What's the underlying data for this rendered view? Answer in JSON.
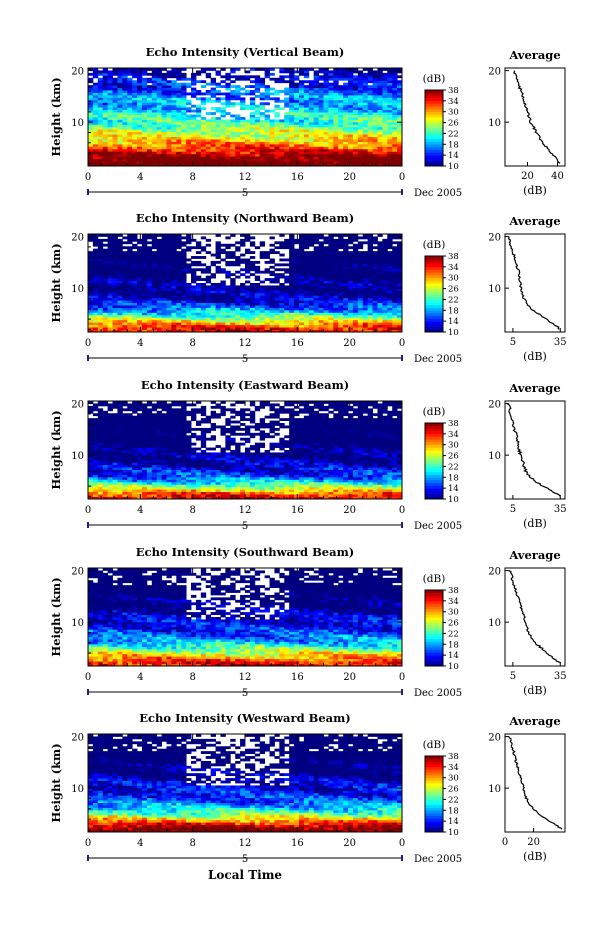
{
  "figure": {
    "x_axis_title": "Local Time",
    "date_label": "Dec 2005",
    "day_label": "5",
    "colorbar_unit": "(dB)",
    "avg_title": "Average",
    "avg_xlabel": "(dB)"
  },
  "chart_data": [
    {
      "type": "heatmap",
      "title": "Echo Intensity (Vertical Beam)",
      "ylabel": "Height (km)",
      "xlabel": "Local Time",
      "x_ticks": [
        "0",
        "4",
        "8",
        "12",
        "16",
        "20",
        "0"
      ],
      "y_ticks": [
        "10",
        "20"
      ],
      "xlim": [
        0,
        24
      ],
      "ylim": [
        1.5,
        20.5
      ],
      "colorbar": {
        "label": "(dB)",
        "ticks": [
          "10",
          "14",
          "18",
          "22",
          "26",
          "30",
          "34",
          "38"
        ],
        "range": [
          10,
          38
        ]
      },
      "profile": {
        "title": "Average",
        "xlabel": "(dB)",
        "x_ticks": [
          "20",
          "40"
        ],
        "xlim": [
          5,
          45
        ],
        "height": [
          2,
          3,
          4,
          5,
          6,
          7,
          8,
          9,
          10,
          11,
          12,
          13,
          14,
          15,
          16,
          17,
          18,
          19,
          20
        ],
        "values": [
          41,
          39,
          36,
          33,
          30,
          28,
          26,
          24,
          22,
          21,
          20,
          19,
          18,
          17,
          16,
          14,
          13,
          12,
          11
        ]
      }
    },
    {
      "type": "heatmap",
      "title": "Echo Intensity (Northward Beam)",
      "ylabel": "Height (km)",
      "xlabel": "Local Time",
      "x_ticks": [
        "0",
        "4",
        "8",
        "12",
        "16",
        "20",
        "0"
      ],
      "y_ticks": [
        "10",
        "20"
      ],
      "xlim": [
        0,
        24
      ],
      "ylim": [
        1.5,
        20.5
      ],
      "colorbar": {
        "label": "(dB)",
        "ticks": [
          "10",
          "14",
          "18",
          "22",
          "26",
          "30",
          "34",
          "38"
        ],
        "range": [
          10,
          38
        ]
      },
      "profile": {
        "title": "Average",
        "xlabel": "(dB)",
        "x_ticks": [
          "5",
          "35"
        ],
        "xlim": [
          0,
          38
        ],
        "height": [
          2,
          3,
          4,
          5,
          6,
          7,
          8,
          9,
          10,
          11,
          12,
          13,
          14,
          15,
          16,
          17,
          18,
          19,
          20
        ],
        "values": [
          35,
          31,
          26,
          21,
          17,
          14,
          12,
          11,
          10,
          10,
          9,
          9,
          8,
          7,
          6,
          5,
          4,
          3,
          2
        ]
      }
    },
    {
      "type": "heatmap",
      "title": "Echo Intensity (Eastward Beam)",
      "ylabel": "Height (km)",
      "xlabel": "Local Time",
      "x_ticks": [
        "0",
        "4",
        "8",
        "12",
        "16",
        "20",
        "0"
      ],
      "y_ticks": [
        "10",
        "20"
      ],
      "xlim": [
        0,
        24
      ],
      "ylim": [
        1.5,
        20.5
      ],
      "colorbar": {
        "label": "(dB)",
        "ticks": [
          "10",
          "14",
          "18",
          "22",
          "26",
          "30",
          "34",
          "38"
        ],
        "range": [
          10,
          38
        ]
      },
      "profile": {
        "title": "Average",
        "xlabel": "(dB)",
        "x_ticks": [
          "5",
          "35"
        ],
        "xlim": [
          0,
          38
        ],
        "height": [
          2,
          3,
          4,
          5,
          6,
          7,
          8,
          9,
          10,
          11,
          12,
          13,
          14,
          15,
          16,
          17,
          18,
          19,
          20
        ],
        "values": [
          35,
          30,
          24,
          19,
          15,
          13,
          12,
          11,
          10,
          9,
          8,
          8,
          7,
          6,
          5,
          4,
          3,
          3,
          2
        ]
      }
    },
    {
      "type": "heatmap",
      "title": "Echo Intensity (Southward Beam)",
      "ylabel": "Height (km)",
      "xlabel": "Local Time",
      "x_ticks": [
        "0",
        "4",
        "8",
        "12",
        "16",
        "20",
        "0"
      ],
      "y_ticks": [
        "10",
        "20"
      ],
      "xlim": [
        0,
        24
      ],
      "ylim": [
        1.5,
        20.5
      ],
      "colorbar": {
        "label": "(dB)",
        "ticks": [
          "10",
          "14",
          "18",
          "22",
          "26",
          "30",
          "34",
          "38"
        ],
        "range": [
          10,
          38
        ]
      },
      "profile": {
        "title": "Average",
        "xlabel": "(dB)",
        "x_ticks": [
          "5",
          "35"
        ],
        "xlim": [
          0,
          38
        ],
        "height": [
          2,
          3,
          4,
          5,
          6,
          7,
          8,
          9,
          10,
          11,
          12,
          13,
          14,
          15,
          16,
          17,
          18,
          19,
          20
        ],
        "values": [
          35,
          31,
          27,
          23,
          19,
          17,
          15,
          14,
          13,
          12,
          11,
          10,
          9,
          8,
          7,
          6,
          5,
          4,
          3
        ]
      }
    },
    {
      "type": "heatmap",
      "title": "Echo Intensity (Westward Beam)",
      "ylabel": "Height (km)",
      "xlabel": "Local Time",
      "x_ticks": [
        "0",
        "4",
        "8",
        "12",
        "16",
        "20",
        "0"
      ],
      "y_ticks": [
        "10",
        "20"
      ],
      "xlim": [
        0,
        24
      ],
      "ylim": [
        1.5,
        20.5
      ],
      "colorbar": {
        "label": "(dB)",
        "ticks": [
          "10",
          "14",
          "18",
          "22",
          "26",
          "30",
          "34",
          "38"
        ],
        "range": [
          10,
          38
        ]
      },
      "profile": {
        "title": "Average",
        "xlabel": "(dB)",
        "x_ticks": [
          "0",
          "20"
        ],
        "xlim": [
          0,
          42
        ],
        "height": [
          2,
          3,
          4,
          5,
          6,
          7,
          8,
          9,
          10,
          11,
          12,
          13,
          14,
          15,
          16,
          17,
          18,
          19,
          20
        ],
        "values": [
          40,
          35,
          29,
          24,
          20,
          17,
          15,
          14,
          13,
          12,
          11,
          10,
          9,
          8,
          7,
          6,
          5,
          4,
          3
        ]
      }
    }
  ]
}
